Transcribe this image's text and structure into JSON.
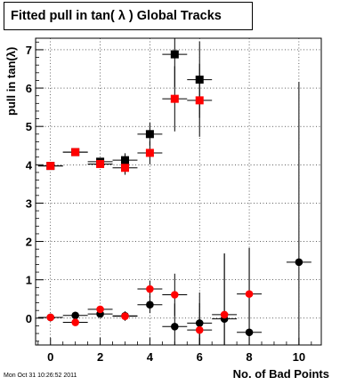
{
  "chart_data": {
    "type": "scatter",
    "title": "Fitted pull in tan( λ )  Global Tracks",
    "xlabel": "No. of Bad Points",
    "ylabel": "pull in tan(λ)",
    "xlim": [
      -0.6,
      10.9
    ],
    "ylim": [
      -0.7,
      7.3
    ],
    "x_ticks": [
      0,
      2,
      4,
      6,
      8,
      10
    ],
    "y_ticks": [
      0,
      1,
      2,
      3,
      4,
      5,
      6,
      7
    ],
    "grid": true,
    "series": [
      {
        "marker": "square",
        "colors": [
          "#000000",
          "#ff0000"
        ],
        "x": [
          0,
          1,
          2,
          3,
          4,
          5,
          6
        ],
        "y": [
          3.97,
          4.33,
          4.08,
          4.12,
          4.8,
          6.88,
          6.22
        ],
        "color": "#000000",
        "y_err": [
          0.05,
          0.07,
          0.1,
          0.18,
          0.3,
          0.85,
          1.0
        ]
      },
      {
        "marker": "square",
        "x": [
          0,
          1,
          2,
          3,
          4,
          5,
          6
        ],
        "y": [
          3.97,
          4.33,
          4.02,
          3.92,
          4.31,
          5.72,
          5.68
        ],
        "color": "#ff0000",
        "y_err": [
          0.05,
          0.07,
          0.1,
          0.18,
          0.3,
          0.85,
          0.95
        ]
      },
      {
        "marker": "circle",
        "x": [
          0,
          1,
          2,
          3,
          4,
          5,
          6,
          7,
          8,
          10
        ],
        "y": [
          0.02,
          0.07,
          0.11,
          0.06,
          0.35,
          -0.22,
          -0.13,
          -0.02,
          -0.37,
          1.46
        ],
        "color": "#000000",
        "y_err": [
          0.03,
          0.05,
          0.08,
          0.12,
          0.22,
          0.6,
          0.8,
          1.7,
          2.2,
          4.7
        ]
      },
      {
        "marker": "circle",
        "x": [
          0,
          1,
          2,
          3,
          4,
          5,
          6,
          7,
          8
        ],
        "y": [
          0.02,
          -0.11,
          0.23,
          0.05,
          0.76,
          0.61,
          -0.31,
          0.09,
          0.63
        ],
        "color": "#ff0000",
        "y_err": [
          0.03,
          0.05,
          0.08,
          0.12,
          0.22,
          0.55,
          0.7,
          1.6,
          1.2
        ]
      }
    ]
  },
  "footer": {
    "datestamp": "Mon Oct 31 10:26:52 2011"
  }
}
